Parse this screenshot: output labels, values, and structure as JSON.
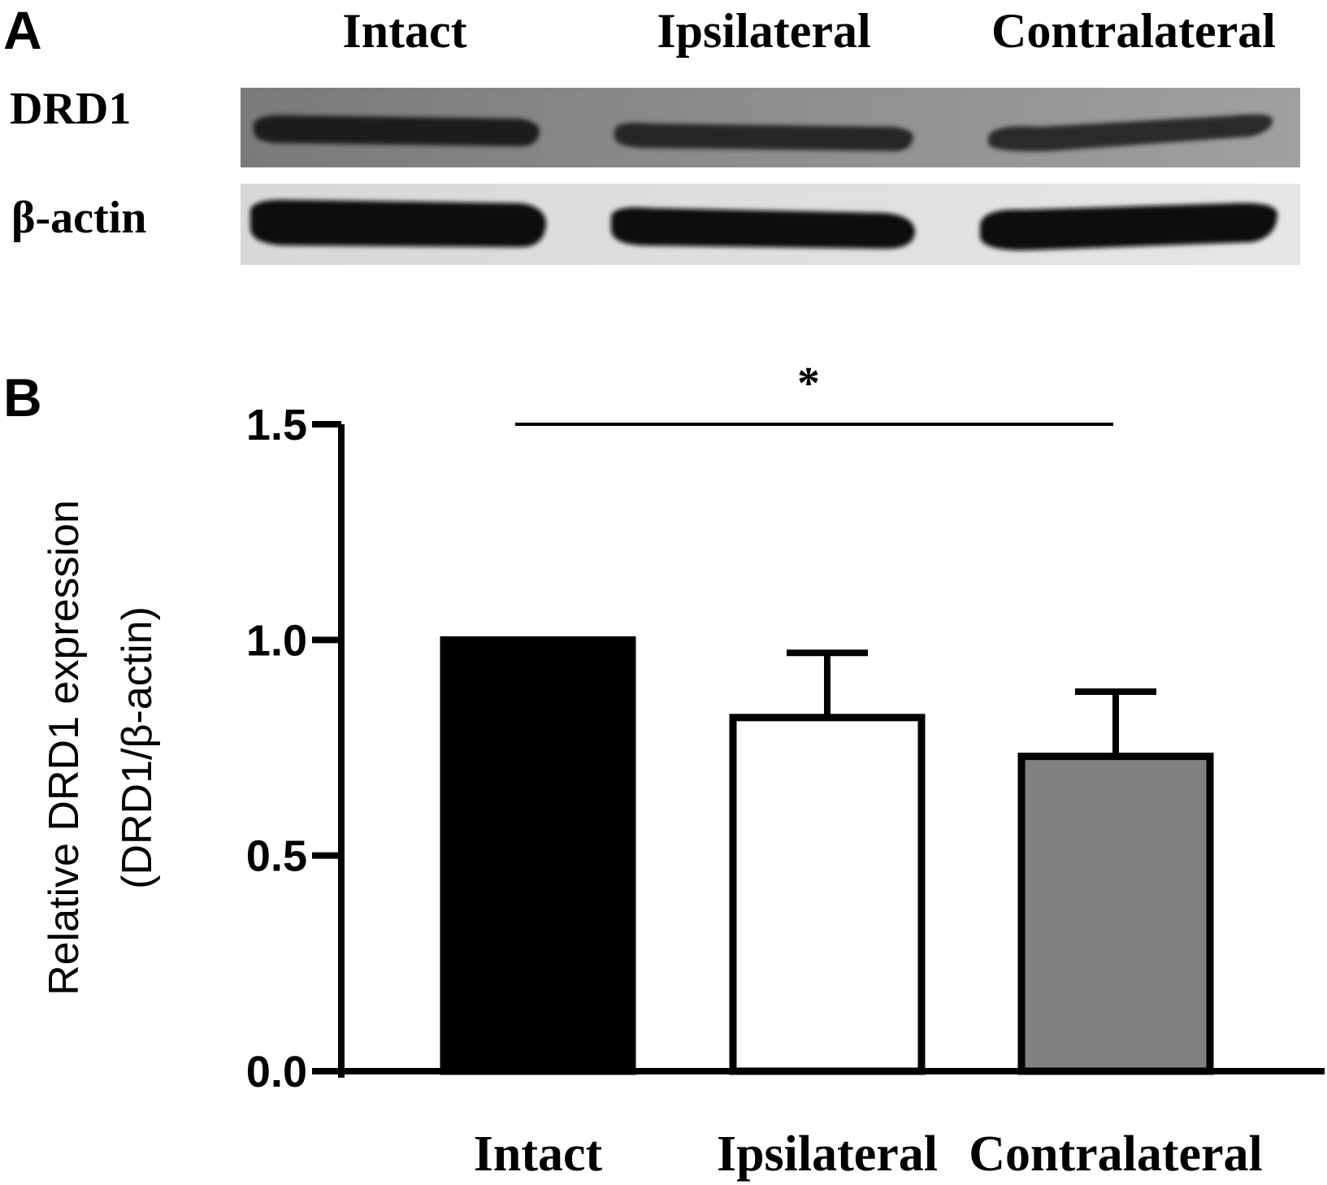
{
  "panel_a": {
    "letter": "A",
    "lanes": [
      "Intact",
      "Ipsilateral",
      "Contralateral"
    ],
    "rows": [
      {
        "label": "DRD1",
        "band_intensity": [
          0.85,
          0.7,
          0.65
        ]
      },
      {
        "label": "β-actin",
        "band_intensity": [
          1.0,
          1.0,
          1.0
        ]
      }
    ]
  },
  "panel_b": {
    "letter": "B",
    "significance": {
      "symbol": "*",
      "from": "Intact",
      "to": "Contralateral"
    }
  },
  "chart_data": {
    "type": "bar",
    "categories": [
      "Intact",
      "Ipsilateral",
      "Contralateral"
    ],
    "values": [
      1.0,
      0.82,
      0.73
    ],
    "error_upper": [
      0.0,
      0.97,
      0.88
    ],
    "bar_colors": [
      "#000000",
      "#ffffff",
      "#808080"
    ],
    "ylabel_line1": "Relative DRD1 expression",
    "ylabel_line2": "(DRD1/β-actin)",
    "ylim": [
      0,
      1.5
    ],
    "yticks": [
      "0.0",
      "0.5",
      "1.0",
      "1.5"
    ],
    "ytick_values": [
      0,
      0.5,
      1.0,
      1.5
    ],
    "grid": false
  }
}
